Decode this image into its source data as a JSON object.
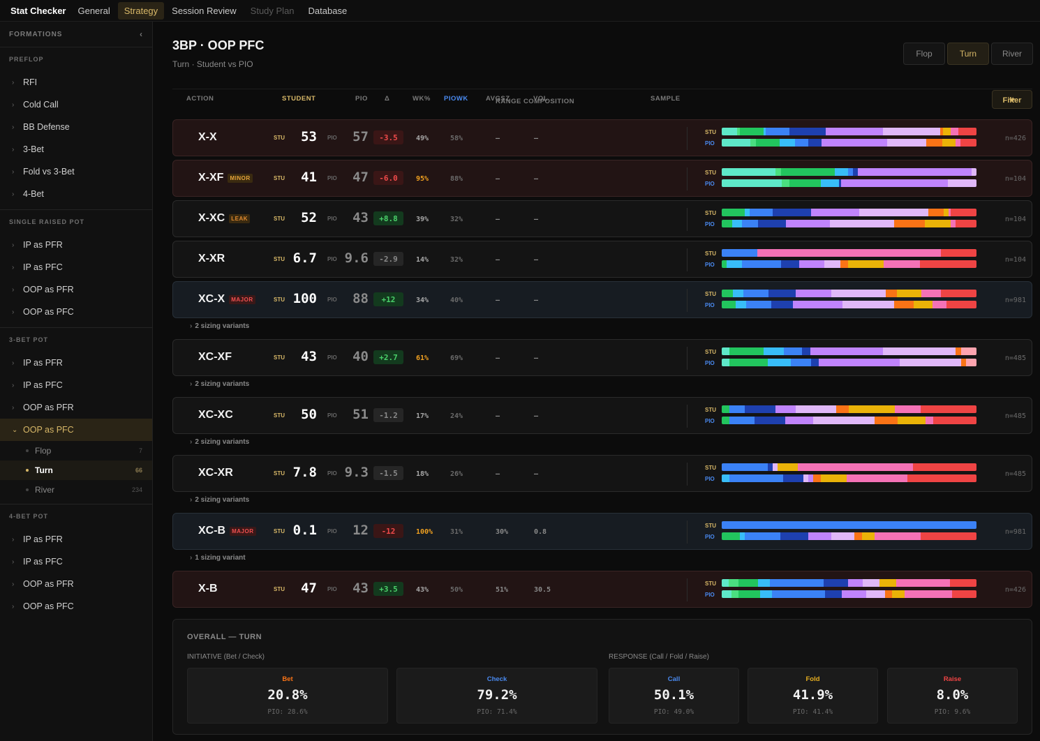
{
  "nav": {
    "brand": "Stat Checker",
    "tabs": [
      "General",
      "Strategy",
      "Session Review",
      "Study Plan",
      "Database"
    ]
  },
  "sidebar": {
    "header": "FORMATIONS",
    "sections": [
      {
        "title": "PREFLOP",
        "items": [
          "RFI",
          "Cold Call",
          "BB Defense",
          "3-Bet",
          "Fold vs 3-Bet",
          "4-Bet"
        ]
      },
      {
        "title": "SINGLE RAISED POT",
        "items": [
          "IP as PFR",
          "IP as PFC",
          "OOP as PFR",
          "OOP as PFC"
        ]
      },
      {
        "title": "3-BET POT",
        "items": [
          "IP as PFR",
          "IP as PFC",
          "OOP as PFR",
          "OOP as PFC"
        ]
      },
      {
        "title": "4-BET POT",
        "items": [
          "IP as PFR",
          "IP as PFC",
          "OOP as PFR",
          "OOP as PFC"
        ]
      }
    ],
    "subitems": [
      {
        "label": "Flop",
        "count": "7"
      },
      {
        "label": "Turn",
        "count": "66"
      },
      {
        "label": "River",
        "count": "234"
      }
    ]
  },
  "page": {
    "title": "3BP · OOP PFC",
    "subtitle": "Turn · Student vs PIO",
    "streets": [
      "Flop",
      "Turn",
      "River"
    ]
  },
  "columns": {
    "action": "ACTION",
    "student": "STUDENT",
    "pio": "PIO",
    "delta": "Δ",
    "wk": "WK%",
    "piowk": "PIOWK",
    "avgsz": "AVGSZ",
    "vol": "VOL",
    "range": "RANGE COMPOSITION",
    "sample": "SAMPLE",
    "filter": "Filter"
  },
  "labels": {
    "stu": "STU",
    "pio": "PIO"
  },
  "colors": {
    "accent": "#d8b868",
    "teal": "#5ee8c8",
    "green": "#22c55e",
    "cyan": "#38bdf8",
    "blue": "#3b82f6",
    "navy": "#1e40af",
    "violet": "#c084fc",
    "lavender": "#e0b8f8",
    "orange": "#f97316",
    "yellow": "#eab308",
    "pink": "#f472b6",
    "red": "#ef4444",
    "lightgreen": "#4ade80",
    "peach": "#fda4af"
  },
  "rows": [
    {
      "action": "X-X",
      "badge": "",
      "stu": "53",
      "pio": "57",
      "delta": "-3.5",
      "wk": "49%",
      "piowk": "58%",
      "avg": "—",
      "vol": "—",
      "n": "n=426",
      "stu_bar": [
        [
          "teal",
          6
        ],
        [
          "lightgreen",
          1
        ],
        [
          "green",
          9
        ],
        [
          "cyan",
          1
        ],
        [
          "blue",
          9
        ],
        [
          "navy",
          14
        ],
        [
          "violet",
          22
        ],
        [
          "lavender",
          22
        ],
        [
          "orange",
          1
        ],
        [
          "yellow",
          3
        ],
        [
          "pink",
          3
        ],
        [
          "red",
          7
        ]
      ],
      "pio_bar": [
        [
          "teal",
          11
        ],
        [
          "lightgreen",
          2
        ],
        [
          "green",
          9
        ],
        [
          "cyan",
          6
        ],
        [
          "blue",
          5
        ],
        [
          "navy",
          5
        ],
        [
          "violet",
          25
        ],
        [
          "lavender",
          15
        ],
        [
          "orange",
          6
        ],
        [
          "yellow",
          5
        ],
        [
          "pink",
          2
        ],
        [
          "red",
          6
        ]
      ]
    },
    {
      "action": "X-XF",
      "badge": "MINOR",
      "stu": "41",
      "pio": "47",
      "delta": "-6.0",
      "wk": "95%",
      "wkhot": true,
      "piowk": "88%",
      "avg": "—",
      "vol": "—",
      "n": "n=104",
      "stu_bar": [
        [
          "teal",
          21
        ],
        [
          "lightgreen",
          2
        ],
        [
          "green",
          21
        ],
        [
          "cyan",
          5
        ],
        [
          "blue",
          2
        ],
        [
          "navy",
          2
        ],
        [
          "violet",
          44
        ],
        [
          "lavender",
          2
        ]
      ],
      "pio_bar": [
        [
          "teal",
          23
        ],
        [
          "lightgreen",
          3
        ],
        [
          "green",
          12
        ],
        [
          "cyan",
          7
        ],
        [
          "navy",
          1
        ],
        [
          "violet",
          41
        ],
        [
          "lavender",
          11
        ]
      ]
    },
    {
      "action": "X-XC",
      "badge": "LEAK",
      "stu": "52",
      "pio": "43",
      "delta": "+8.8",
      "wk": "39%",
      "piowk": "32%",
      "avg": "—",
      "vol": "—",
      "n": "n=104",
      "stu_bar": [
        [
          "green",
          9
        ],
        [
          "cyan",
          2
        ],
        [
          "blue",
          9
        ],
        [
          "navy",
          15
        ],
        [
          "violet",
          19
        ],
        [
          "lavender",
          27
        ],
        [
          "orange",
          6
        ],
        [
          "yellow",
          2
        ],
        [
          "pink",
          1
        ],
        [
          "red",
          10
        ]
      ],
      "pio_bar": [
        [
          "green",
          4
        ],
        [
          "cyan",
          4
        ],
        [
          "blue",
          6
        ],
        [
          "navy",
          11
        ],
        [
          "violet",
          17
        ],
        [
          "lavender",
          25
        ],
        [
          "orange",
          12
        ],
        [
          "yellow",
          10
        ],
        [
          "pink",
          2
        ],
        [
          "red",
          8
        ]
      ]
    },
    {
      "action": "X-XR",
      "badge": "",
      "stu": "6.7",
      "pio": "9.6",
      "delta": "-2.9",
      "wk": "14%",
      "piowk": "32%",
      "avg": "—",
      "vol": "—",
      "n": "n=104",
      "stu_bar": [
        [
          "blue",
          14
        ],
        [
          "pink",
          72
        ],
        [
          "red",
          14
        ]
      ],
      "pio_bar": [
        [
          "green",
          2
        ],
        [
          "cyan",
          6
        ],
        [
          "blue",
          15
        ],
        [
          "navy",
          7
        ],
        [
          "violet",
          10
        ],
        [
          "lavender",
          6
        ],
        [
          "orange",
          3
        ],
        [
          "yellow",
          14
        ],
        [
          "pink",
          14
        ],
        [
          "red",
          22
        ]
      ]
    },
    {
      "action": "XC-X",
      "badge": "MAJOR",
      "sev": "blue",
      "stu": "100",
      "pio": "88",
      "delta": "+12",
      "wk": "34%",
      "piowk": "40%",
      "avg": "—",
      "vol": "—",
      "n": "n=981",
      "variant": "2 sizing variants",
      "stu_bar": [
        [
          "green",
          4
        ],
        [
          "cyan",
          4
        ],
        [
          "blue",
          9
        ],
        [
          "navy",
          10
        ],
        [
          "violet",
          13
        ],
        [
          "lavender",
          20
        ],
        [
          "orange",
          4
        ],
        [
          "yellow",
          9
        ],
        [
          "pink",
          7
        ],
        [
          "red",
          13
        ]
      ],
      "pio_bar": [
        [
          "green",
          5
        ],
        [
          "cyan",
          4
        ],
        [
          "blue",
          9
        ],
        [
          "navy",
          8
        ],
        [
          "violet",
          18
        ],
        [
          "lavender",
          19
        ],
        [
          "orange",
          7
        ],
        [
          "yellow",
          7
        ],
        [
          "pink",
          5
        ],
        [
          "red",
          11
        ]
      ]
    },
    {
      "action": "XC-XF",
      "badge": "",
      "stu": "43",
      "pio": "40",
      "delta": "+2.7",
      "wk": "61%",
      "wkhot": true,
      "piowk": "69%",
      "avg": "—",
      "vol": "—",
      "n": "n=485",
      "variant": "2 sizing variants",
      "stu_bar": [
        [
          "teal",
          3
        ],
        [
          "green",
          13
        ],
        [
          "cyan",
          8
        ],
        [
          "blue",
          7
        ],
        [
          "navy",
          3
        ],
        [
          "violet",
          28
        ],
        [
          "lavender",
          28
        ],
        [
          "orange",
          2
        ],
        [
          "peach",
          6
        ]
      ],
      "pio_bar": [
        [
          "teal",
          3
        ],
        [
          "green",
          15
        ],
        [
          "cyan",
          9
        ],
        [
          "blue",
          8
        ],
        [
          "navy",
          3
        ],
        [
          "violet",
          32
        ],
        [
          "lavender",
          24
        ],
        [
          "orange",
          2
        ],
        [
          "peach",
          4
        ]
      ]
    },
    {
      "action": "XC-XC",
      "badge": "",
      "stu": "50",
      "pio": "51",
      "delta": "-1.2",
      "wk": "17%",
      "piowk": "24%",
      "avg": "—",
      "vol": "—",
      "n": "n=485",
      "variant": "2 sizing variants",
      "stu_bar": [
        [
          "green",
          3
        ],
        [
          "blue",
          6
        ],
        [
          "navy",
          12
        ],
        [
          "violet",
          8
        ],
        [
          "lavender",
          16
        ],
        [
          "orange",
          5
        ],
        [
          "yellow",
          18
        ],
        [
          "pink",
          10
        ],
        [
          "red",
          6
        ],
        [
          "red",
          16
        ]
      ],
      "pio_bar": [
        [
          "green",
          3
        ],
        [
          "blue",
          10
        ],
        [
          "navy",
          12
        ],
        [
          "violet",
          11
        ],
        [
          "lavender",
          24
        ],
        [
          "orange",
          9
        ],
        [
          "yellow",
          11
        ],
        [
          "pink",
          3
        ],
        [
          "red",
          17
        ]
      ]
    },
    {
      "action": "XC-XR",
      "badge": "",
      "stu": "7.8",
      "pio": "9.3",
      "delta": "-1.5",
      "wk": "18%",
      "piowk": "26%",
      "avg": "—",
      "vol": "—",
      "n": "n=485",
      "variant": "2 sizing variants",
      "stu_bar": [
        [
          "blue",
          18
        ],
        [
          "navy",
          2
        ],
        [
          "lavender",
          2
        ],
        [
          "yellow",
          8
        ],
        [
          "pink",
          45
        ],
        [
          "red",
          25
        ]
      ],
      "pio_bar": [
        [
          "cyan",
          3
        ],
        [
          "blue",
          21
        ],
        [
          "navy",
          8
        ],
        [
          "lavender",
          2
        ],
        [
          "violet",
          2
        ],
        [
          "orange",
          3
        ],
        [
          "yellow",
          10
        ],
        [
          "pink",
          5
        ],
        [
          "pink",
          19
        ],
        [
          "red",
          27
        ]
      ]
    },
    {
      "action": "XC-B",
      "badge": "MAJOR",
      "sev": "blue",
      "stu": "0.1",
      "pio": "12",
      "delta": "-12",
      "wk": "100%",
      "wkhot": true,
      "piowk": "31%",
      "avg": "30%",
      "vol": "0.8",
      "n": "n=981",
      "variant": "1 sizing variant",
      "stu_bar": [
        [
          "blue",
          100
        ]
      ],
      "pio_bar": [
        [
          "green",
          7
        ],
        [
          "cyan",
          2
        ],
        [
          "blue",
          14
        ],
        [
          "navy",
          11
        ],
        [
          "violet",
          9
        ],
        [
          "lavender",
          9
        ],
        [
          "orange",
          3
        ],
        [
          "yellow",
          5
        ],
        [
          "pink",
          10
        ],
        [
          "pink",
          8
        ],
        [
          "red",
          22
        ]
      ]
    },
    {
      "action": "X-B",
      "badge": "",
      "stu": "47",
      "pio": "43",
      "delta": "+3.5",
      "wk": "43%",
      "piowk": "50%",
      "avg": "51%",
      "vol": "30.5",
      "n": "n=426",
      "stu_bar": [
        [
          "teal",
          3
        ],
        [
          "lightgreen",
          4
        ],
        [
          "green",
          8
        ],
        [
          "cyan",
          5
        ],
        [
          "blue",
          22
        ],
        [
          "navy",
          10
        ],
        [
          "violet",
          6
        ],
        [
          "lavender",
          7
        ],
        [
          "yellow",
          7
        ],
        [
          "pink",
          22
        ],
        [
          "red",
          11
        ]
      ],
      "pio_bar": [
        [
          "teal",
          4
        ],
        [
          "lightgreen",
          3
        ],
        [
          "green",
          9
        ],
        [
          "cyan",
          5
        ],
        [
          "blue",
          22
        ],
        [
          "navy",
          7
        ],
        [
          "violet",
          10
        ],
        [
          "lavender",
          8
        ],
        [
          "orange",
          3
        ],
        [
          "yellow",
          5
        ],
        [
          "pink",
          12
        ],
        [
          "pink",
          8
        ],
        [
          "red",
          10
        ]
      ]
    }
  ],
  "overall": {
    "title": "OVERALL — TURN",
    "initiative_label": "INITIATIVE (Bet / Check)",
    "response_label": "RESPONSE (Call / Fold / Raise)",
    "cards": [
      {
        "label": "Bet",
        "value": "20.8%",
        "pio": "PIO: 28.6%",
        "color": "#f97316"
      },
      {
        "label": "Check",
        "value": "79.2%",
        "pio": "PIO: 71.4%",
        "color": "#4a8af0"
      },
      {
        "label": "Call",
        "value": "50.1%",
        "pio": "PIO: 49.0%",
        "color": "#4a8af0"
      },
      {
        "label": "Fold",
        "value": "41.9%",
        "pio": "PIO: 41.4%",
        "color": "#e8b020"
      },
      {
        "label": "Raise",
        "value": "8.0%",
        "pio": "PIO: 9.6%",
        "color": "#ef4444"
      }
    ]
  }
}
